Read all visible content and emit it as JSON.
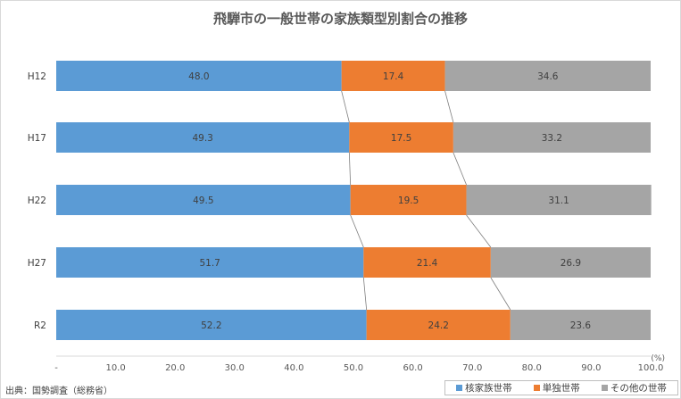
{
  "chart_data": {
    "type": "bar",
    "orientation": "horizontal",
    "stacked": true,
    "title": "飛騨市の一般世帯の家族類型別割合の推移",
    "categories": [
      "H12",
      "H17",
      "H22",
      "H27",
      "R2"
    ],
    "series": [
      {
        "name": "核家族世帯",
        "color": "#5b9bd5",
        "values": [
          48.0,
          49.3,
          49.5,
          51.7,
          52.2
        ]
      },
      {
        "name": "単独世帯",
        "color": "#ed7d31",
        "values": [
          17.4,
          17.5,
          19.5,
          21.4,
          24.2
        ]
      },
      {
        "name": "その他の世帯",
        "color": "#a5a5a5",
        "values": [
          34.6,
          33.2,
          31.1,
          26.9,
          23.6
        ]
      }
    ],
    "xlim": [
      0,
      100
    ],
    "xticks": [
      "-",
      "10.0",
      "20.0",
      "30.0",
      "40.0",
      "50.0",
      "60.0",
      "70.0",
      "80.0",
      "90.0",
      "100.0"
    ],
    "xunit": "(%)",
    "series_lines": true,
    "legend_position": "bottom-right",
    "source": "出典：国勢調査（総務省）"
  }
}
